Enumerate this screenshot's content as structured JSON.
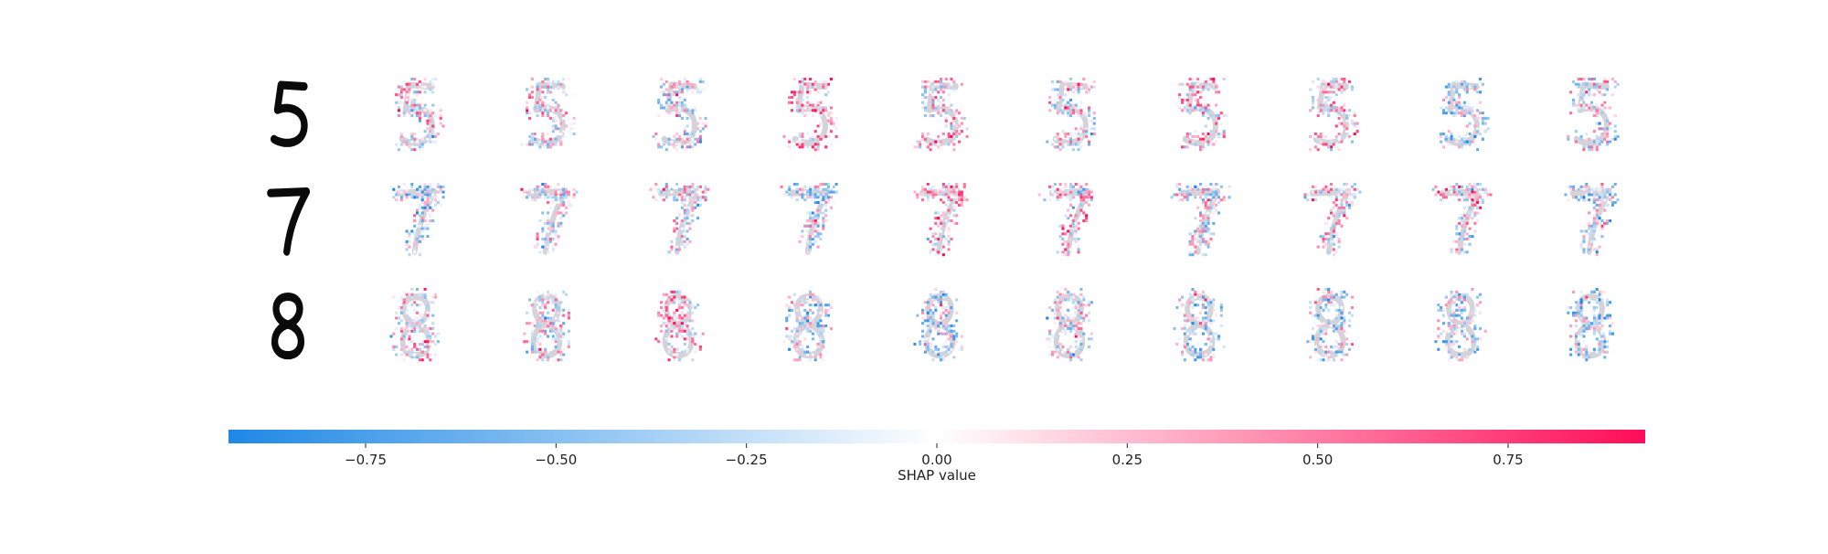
{
  "chart_data": {
    "type": "heatmap",
    "description_rows": [
      {
        "input_digit": "5",
        "outputs": 10
      },
      {
        "input_digit": "7",
        "outputs": 10
      },
      {
        "input_digit": "8",
        "outputs": 10
      }
    ],
    "colorbar": {
      "label": "SHAP value",
      "range": [
        -0.93,
        0.93
      ],
      "ticks": [
        -0.75,
        -0.5,
        -0.25,
        0.0,
        0.25,
        0.5,
        0.75
      ],
      "tick_labels": [
        "−0.75",
        "−0.50",
        "−0.25",
        "0.00",
        "0.25",
        "0.50",
        "0.75"
      ],
      "colors": {
        "negative": "#1e88e5",
        "neutral": "#ffffff",
        "positive": "#ff0d57"
      }
    }
  }
}
